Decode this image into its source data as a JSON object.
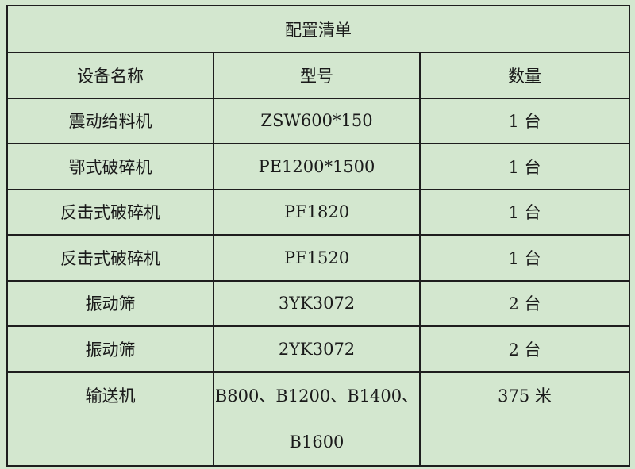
{
  "table": {
    "title": "配置清单",
    "headers": [
      "设备名称",
      "型号",
      "数量"
    ],
    "rows": [
      [
        "震动给料机",
        "ZSW600*150",
        "1 台"
      ],
      [
        "鄂式破碎机",
        "PE1200*1500",
        "1 台"
      ],
      [
        "反击式破碎机",
        "PF1820",
        "1 台"
      ],
      [
        "反击式破碎机",
        "PF1520",
        "1 台"
      ],
      [
        "振动筛",
        "3YK3072",
        "2 台"
      ],
      [
        "振动筛",
        "2YK3072",
        "2 台"
      ]
    ],
    "last_row": {
      "name": "输送机",
      "model_line1": "B800、B1200、B1400、",
      "model_line2": "B1600",
      "quantity": "375 米"
    }
  },
  "colors": {
    "background": "#d3e7cf",
    "border": "#1e1e1e"
  }
}
